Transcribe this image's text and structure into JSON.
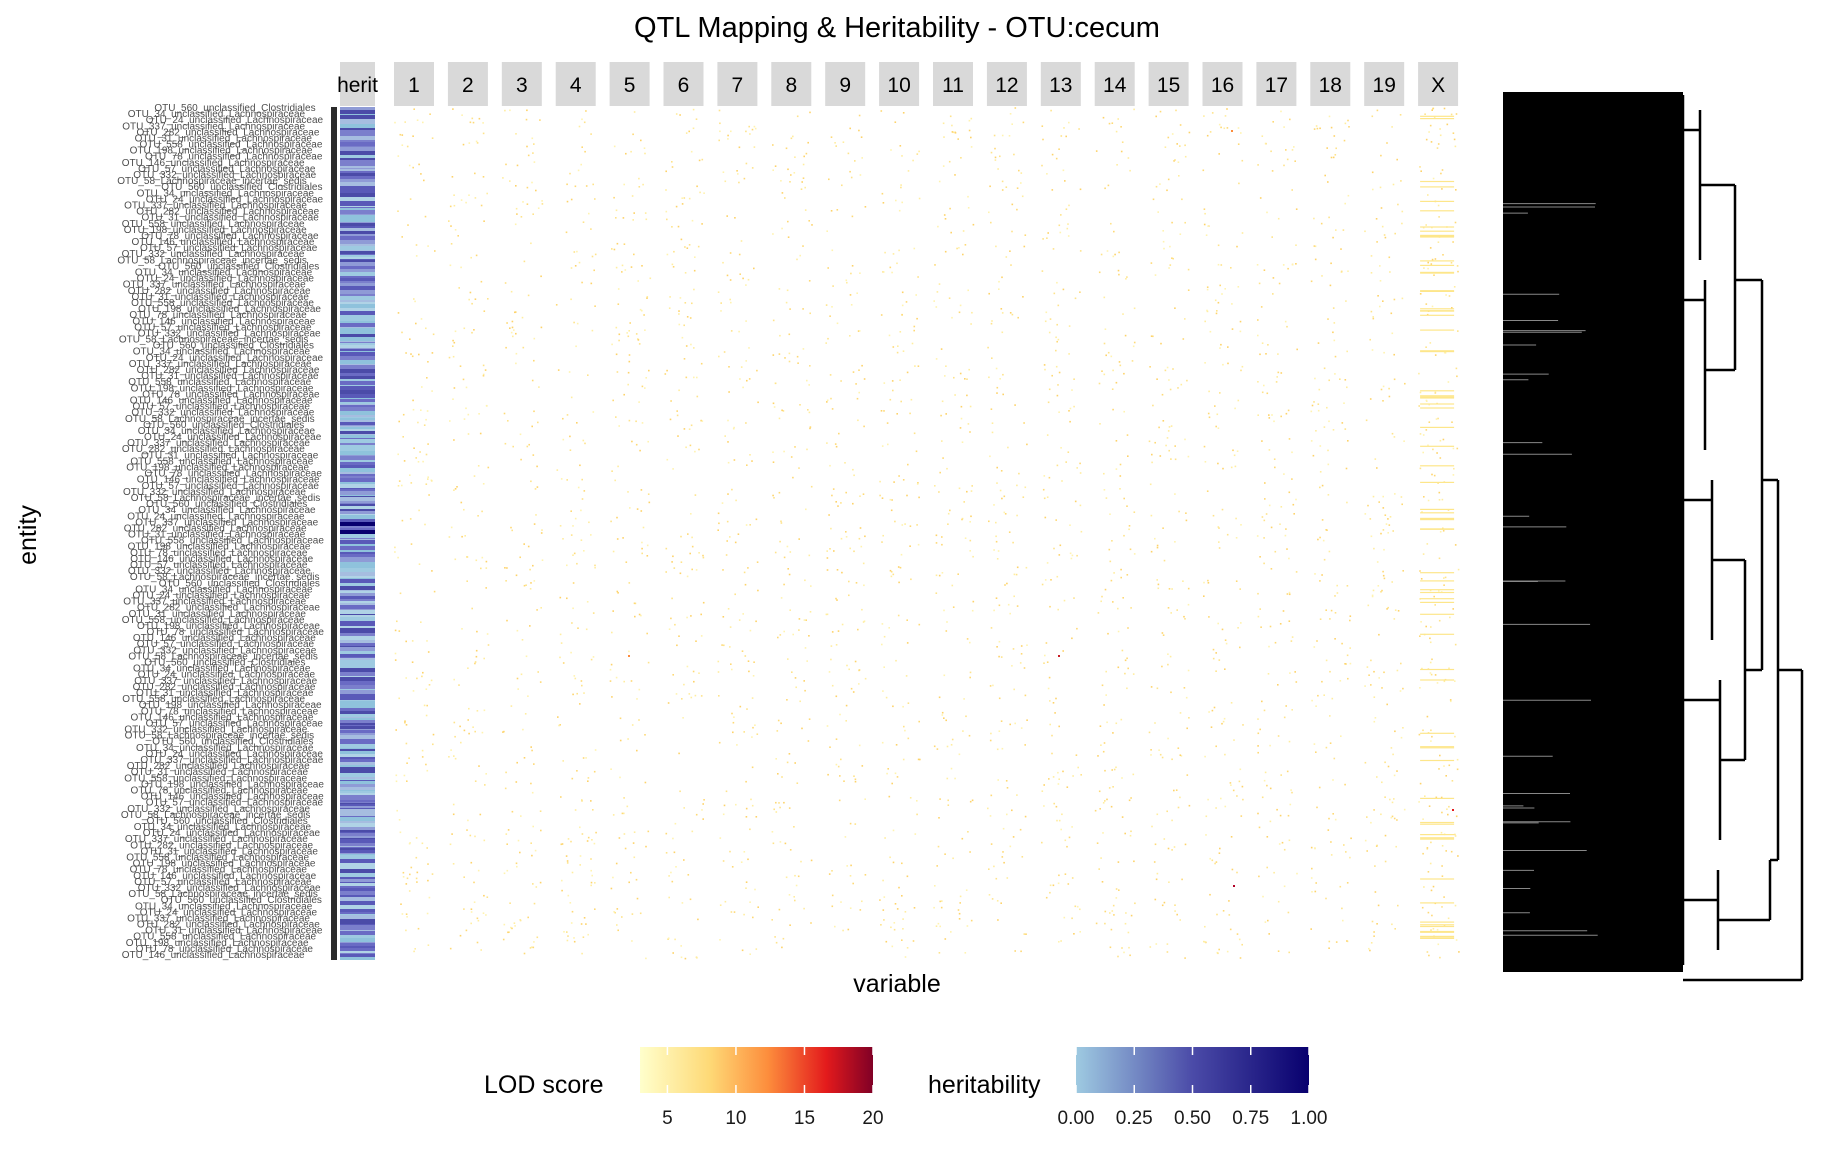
{
  "chart_data": {
    "type": "heatmap",
    "title": "QTL Mapping & Heritability - OTU:cecum",
    "xlabel": "variable",
    "ylabel": "entity",
    "heritability_column_label": "herit",
    "facets": [
      "1",
      "2",
      "3",
      "4",
      "5",
      "6",
      "7",
      "8",
      "9",
      "10",
      "11",
      "12",
      "13",
      "14",
      "15",
      "16",
      "17",
      "18",
      "19",
      "X"
    ],
    "entity_labels_visible": [
      "OTU_560_unclassified_Clostridiales",
      "OTU_34_unclassified_Lachnospiraceae",
      "OTU_24_unclassified_Lachnospiraceae",
      "OTU_337_unclassified_Lachnospiraceae",
      "OTU_282_unclassified_Lachnospiraceae",
      "OTU_31_unclassified_Lachnospiraceae",
      "OTU_558_unclassified_Lachnospiraceae",
      "OTU_198_unclassified_Lachnospiraceae",
      "OTU_78_unclassified_Lachnospiraceae",
      "OTU_146_unclassified_Lachnospiraceae",
      "OTU_57_unclassified_Lachnospiraceae",
      "OTU_332_unclassified_Lachnospiraceae",
      "OTU_58_Lachnospiraceae_incertae_sedis"
    ],
    "lod_legend": {
      "title": "LOD score",
      "ticks": [
        5,
        10,
        15,
        20
      ],
      "range": [
        3,
        20
      ],
      "colors": [
        "#ffffcc",
        "#fed976",
        "#fd8d3c",
        "#e31a1c",
        "#800026"
      ]
    },
    "heritability_legend": {
      "title": "heritability",
      "ticks": [
        "0.00",
        "0.25",
        "0.50",
        "0.75",
        "1.00"
      ],
      "range": [
        0,
        1
      ],
      "colors": [
        "#9ecae1",
        "#4b4ba8",
        "#08006e"
      ]
    },
    "legend_position": "bottom",
    "dendrogram": "right",
    "grid": false
  }
}
